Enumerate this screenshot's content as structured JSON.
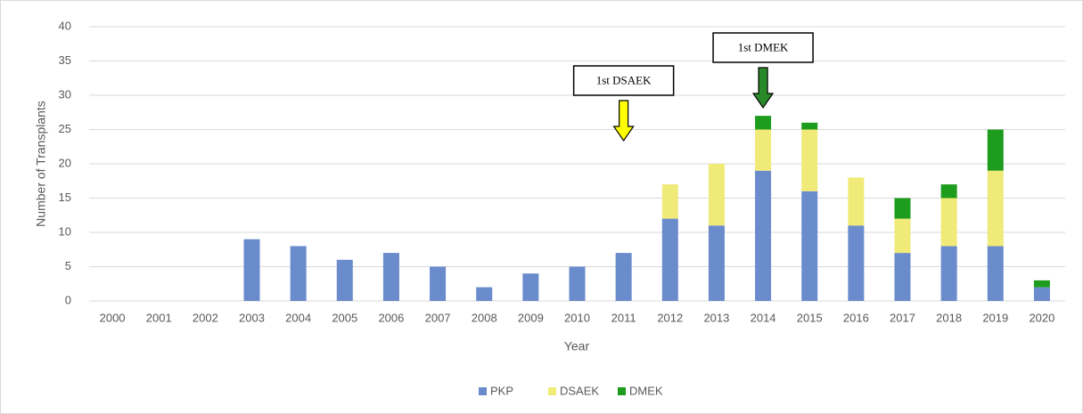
{
  "chart_data": {
    "type": "stacked_bar",
    "x_label": "Year",
    "y_label": "Number of Transplants",
    "categories": [
      "2000",
      "2001",
      "2002",
      "2003",
      "2004",
      "2005",
      "2006",
      "2007",
      "2008",
      "2009",
      "2010",
      "2011",
      "2012",
      "2013",
      "2014",
      "2015",
      "2016",
      "2017",
      "2018",
      "2019",
      "2020"
    ],
    "series": [
      {
        "name": "PKP",
        "color": "#6a8bcc",
        "values": [
          0,
          0,
          0,
          9,
          8,
          6,
          7,
          5,
          2,
          4,
          5,
          7,
          12,
          11,
          19,
          16,
          11,
          7,
          8,
          8,
          2
        ]
      },
      {
        "name": "DSAEK",
        "color": "#f0ea78",
        "values": [
          0,
          0,
          0,
          0,
          0,
          0,
          0,
          0,
          0,
          0,
          0,
          0,
          5,
          9,
          6,
          9,
          7,
          5,
          7,
          11,
          0
        ]
      },
      {
        "name": "DMEK",
        "color": "#1e9c1e",
        "values": [
          0,
          0,
          0,
          0,
          0,
          0,
          0,
          0,
          0,
          0,
          0,
          0,
          0,
          0,
          2,
          1,
          0,
          3,
          2,
          6,
          1
        ]
      }
    ],
    "ylim": [
      0,
      40
    ],
    "yticks": [
      0,
      5,
      10,
      15,
      20,
      25,
      30,
      35,
      40
    ],
    "grid": true,
    "legend": "bottom",
    "annotations": [
      {
        "text": "1st DSAEK",
        "category": "2011",
        "color": "#ffff00"
      },
      {
        "text": "1st DMEK",
        "category": "2014",
        "color": "#2a8a2a"
      }
    ]
  }
}
